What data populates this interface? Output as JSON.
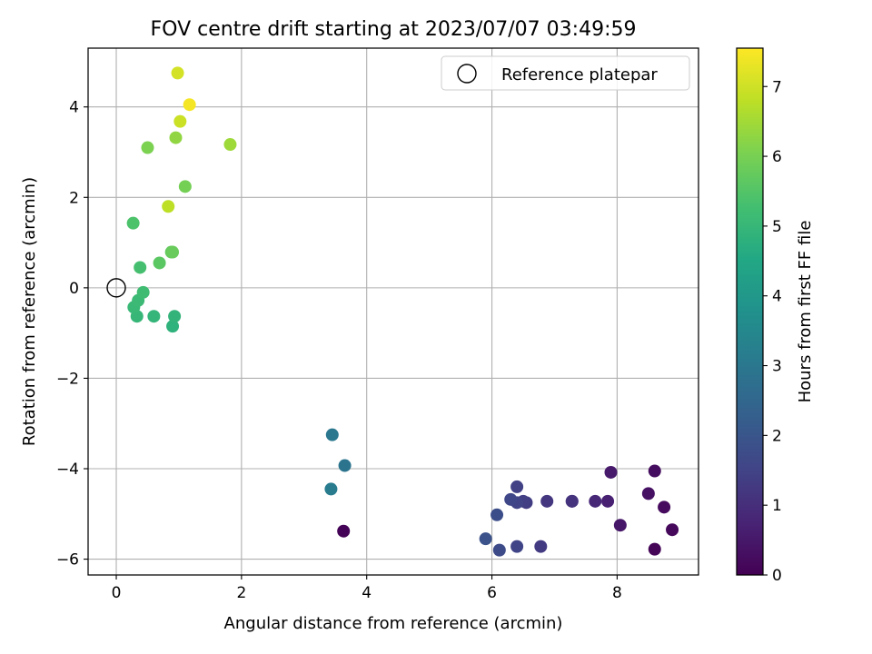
{
  "chart_data": {
    "type": "scatter",
    "title": "FOV centre drift starting at 2023/07/07 03:49:59",
    "xlabel": "Angular distance from reference (arcmin)",
    "ylabel": "Rotation from reference (arcmin)",
    "xlim": [
      -0.45,
      9.3
    ],
    "ylim": [
      -6.35,
      5.3
    ],
    "xticks": [
      0,
      2,
      4,
      6,
      8
    ],
    "xtick_labels": [
      "0",
      "2",
      "4",
      "6",
      "8"
    ],
    "yticks": [
      -6,
      -4,
      -2,
      0,
      2,
      4
    ],
    "ytick_labels": [
      "−6",
      "−4",
      "−2",
      "0",
      "2",
      "4"
    ],
    "grid": true,
    "legend": {
      "position": "top-right",
      "entries": [
        {
          "label": "Reference platepar",
          "marker": "open-circle"
        }
      ]
    },
    "reference_point": {
      "x": 0,
      "y": 0,
      "label": "Reference platepar"
    },
    "colorbar": {
      "label": "Hours from first FF file",
      "colormap": "viridis",
      "range": [
        0,
        7.55
      ],
      "ticks": [
        0,
        1,
        2,
        3,
        4,
        5,
        6,
        7
      ],
      "tick_labels": [
        "0",
        "1",
        "2",
        "3",
        "4",
        "5",
        "6",
        "7"
      ]
    },
    "points": [
      {
        "x": 3.63,
        "y": -5.38,
        "c": 0.05
      },
      {
        "x": 8.6,
        "y": -5.78,
        "c": 0.1
      },
      {
        "x": 8.88,
        "y": -5.35,
        "c": 0.15
      },
      {
        "x": 8.75,
        "y": -4.85,
        "c": 0.2
      },
      {
        "x": 8.6,
        "y": -4.05,
        "c": 0.25
      },
      {
        "x": 8.5,
        "y": -4.55,
        "c": 0.35
      },
      {
        "x": 8.05,
        "y": -5.25,
        "c": 0.45
      },
      {
        "x": 7.9,
        "y": -4.08,
        "c": 0.55
      },
      {
        "x": 7.85,
        "y": -4.72,
        "c": 0.7
      },
      {
        "x": 7.65,
        "y": -4.72,
        "c": 0.85
      },
      {
        "x": 7.28,
        "y": -4.72,
        "c": 1.0
      },
      {
        "x": 7.28,
        "y": -4.72,
        "c": 1.1
      },
      {
        "x": 6.88,
        "y": -4.72,
        "c": 1.2
      },
      {
        "x": 6.78,
        "y": -5.72,
        "c": 1.3
      },
      {
        "x": 6.55,
        "y": -4.75,
        "c": 1.35
      },
      {
        "x": 6.5,
        "y": -4.72,
        "c": 1.4
      },
      {
        "x": 6.4,
        "y": -4.4,
        "c": 1.45
      },
      {
        "x": 6.4,
        "y": -4.75,
        "c": 1.5
      },
      {
        "x": 6.4,
        "y": -5.72,
        "c": 1.55
      },
      {
        "x": 6.3,
        "y": -4.68,
        "c": 1.6
      },
      {
        "x": 6.12,
        "y": -5.8,
        "c": 1.7
      },
      {
        "x": 6.08,
        "y": -5.02,
        "c": 1.8
      },
      {
        "x": 5.9,
        "y": -5.55,
        "c": 1.9
      },
      {
        "x": 3.65,
        "y": -3.93,
        "c": 2.9
      },
      {
        "x": 3.45,
        "y": -3.25,
        "c": 3.0
      },
      {
        "x": 3.43,
        "y": -4.45,
        "c": 3.15
      },
      {
        "x": 0.9,
        "y": -0.85,
        "c": 4.85
      },
      {
        "x": 0.93,
        "y": -0.63,
        "c": 4.9
      },
      {
        "x": 0.6,
        "y": -0.63,
        "c": 4.95
      },
      {
        "x": 0.33,
        "y": -0.63,
        "c": 5.0
      },
      {
        "x": 0.28,
        "y": -0.43,
        "c": 5.05
      },
      {
        "x": 0.35,
        "y": -0.28,
        "c": 5.1
      },
      {
        "x": 0.43,
        "y": -0.1,
        "c": 5.2
      },
      {
        "x": 0.38,
        "y": 0.45,
        "c": 5.3
      },
      {
        "x": 0.27,
        "y": 1.43,
        "c": 5.4
      },
      {
        "x": 0.69,
        "y": 0.55,
        "c": 5.6
      },
      {
        "x": 0.88,
        "y": 0.79,
        "c": 5.7
      },
      {
        "x": 0.9,
        "y": 0.79,
        "c": 5.8
      },
      {
        "x": 1.1,
        "y": 2.24,
        "c": 5.95
      },
      {
        "x": 0.5,
        "y": 3.1,
        "c": 6.05
      },
      {
        "x": 0.95,
        "y": 3.32,
        "c": 6.3
      },
      {
        "x": 1.82,
        "y": 3.17,
        "c": 6.45
      },
      {
        "x": 0.83,
        "y": 1.8,
        "c": 6.8
      },
      {
        "x": 1.02,
        "y": 3.68,
        "c": 6.95
      },
      {
        "x": 0.98,
        "y": 4.75,
        "c": 7.05
      },
      {
        "x": 1.17,
        "y": 4.05,
        "c": 7.45
      }
    ]
  }
}
